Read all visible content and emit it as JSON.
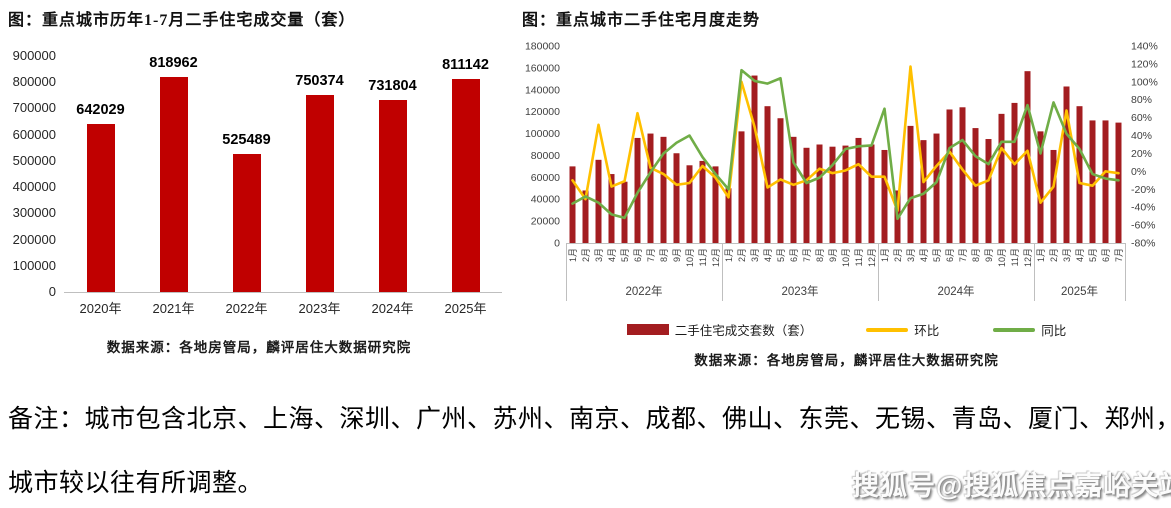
{
  "colors": {
    "left_bar": "#c00000",
    "right_bar": "#a31d20",
    "mom_line": "#ffc000",
    "yoy_line": "#70ad47",
    "axis_line": "#bfbfbf"
  },
  "note": {
    "line1": "备注：城市包含北京、上海、深圳、广州、苏州、南京、成都、佛山、东莞、无锡、青岛、厦门、郑州，",
    "line2": "城市较以往有所调整。"
  },
  "watermark": "搜狐号@搜狐焦点嘉峪关站",
  "chart_data": [
    {
      "type": "bar",
      "title": "图：重点城市历年1-7月二手住宅成交量（套）",
      "categories": [
        "2020年",
        "2021年",
        "2022年",
        "2023年",
        "2024年",
        "2025年"
      ],
      "values": [
        642029,
        818962,
        525489,
        750374,
        731804,
        811142
      ],
      "ylabel": "",
      "ylim": [
        0,
        900000
      ],
      "ytick_step": 100000,
      "grid": false,
      "show_data_labels": true,
      "source": "数据来源：各地房管局，麟评居住大数据研究院"
    },
    {
      "type": "bar+line",
      "title": "图：重点城市二手住宅月度走势",
      "x_axis": {
        "month_labels": [
          "1月",
          "2月",
          "3月",
          "4月",
          "5月",
          "6月",
          "7月",
          "8月",
          "9月",
          "10月",
          "11月",
          "12月"
        ],
        "groups": [
          {
            "label": "2022年",
            "months": 12
          },
          {
            "label": "2023年",
            "months": 12
          },
          {
            "label": "2024年",
            "months": 12
          },
          {
            "label": "2025年",
            "months": 7
          }
        ]
      },
      "left_axis": {
        "min": 0,
        "max": 180000,
        "step": 20000
      },
      "right_axis": {
        "min": -80,
        "max": 140,
        "step": 20,
        "suffix": "%"
      },
      "grid": false,
      "legend_position": "bottom",
      "series": [
        {
          "name": "二手住宅成交套数（套）",
          "type": "bar",
          "axis": "left",
          "values": [
            70000,
            48000,
            76000,
            63000,
            56000,
            96000,
            100000,
            97000,
            82000,
            71000,
            75000,
            70000,
            50000,
            102000,
            153000,
            125000,
            114000,
            97000,
            87000,
            90000,
            88000,
            89000,
            96000,
            90000,
            85000,
            48000,
            107000,
            94000,
            100000,
            122000,
            124000,
            105000,
            95000,
            118000,
            128000,
            157000,
            102000,
            85000,
            143000,
            125000,
            112000,
            112000,
            110000
          ]
        },
        {
          "name": "环比",
          "type": "line",
          "axis": "right",
          "values": [
            -10,
            -31,
            52,
            -17,
            -11,
            65,
            4,
            -3,
            -15,
            -13,
            6,
            -7,
            -29,
            100,
            50,
            -18,
            -9,
            -15,
            -10,
            3,
            -2,
            1,
            8,
            -6,
            -6,
            -44,
            117,
            -12,
            6,
            22,
            2,
            -16,
            -10,
            26,
            8,
            23,
            -35,
            -17,
            68,
            -13,
            -16,
            0,
            -2
          ]
        },
        {
          "name": "同比",
          "type": "line",
          "axis": "right",
          "values": [
            -36,
            -28,
            -35,
            -48,
            -52,
            -24,
            -1,
            20,
            32,
            40,
            16,
            -3,
            -20,
            113,
            101,
            98,
            104,
            10,
            -13,
            -7,
            7,
            25,
            28,
            29,
            70,
            -53,
            -30,
            -25,
            -12,
            26,
            35,
            17,
            8,
            33,
            33,
            74,
            20,
            77,
            42,
            25,
            -3,
            -8,
            -10
          ]
        }
      ],
      "source": "数据来源：各地房管局，麟评居住大数据研究院"
    }
  ]
}
